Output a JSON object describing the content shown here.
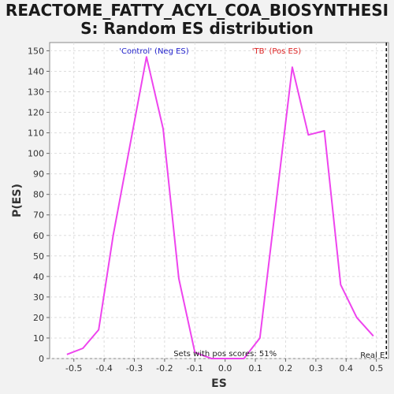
{
  "chart_data": {
    "type": "line",
    "title_lines": [
      "REACTOME_FATTY_ACYL_COA_BIOSYNTHESI",
      "S: Random ES distribution"
    ],
    "xlabel": "ES",
    "ylabel": "P(ES)",
    "xlim": [
      -0.58,
      0.54
    ],
    "ylim": [
      0,
      154
    ],
    "x_ticks": [
      -0.5,
      -0.4,
      -0.3,
      -0.2,
      -0.1,
      0.0,
      0.1,
      0.2,
      0.3,
      0.4,
      0.5
    ],
    "x_tick_labels": [
      "-0.5",
      "-0.4",
      "-0.3",
      "-0.2",
      "-0.1",
      "0.0",
      "0.1",
      "0.2",
      "0.3",
      "0.4",
      "0.5"
    ],
    "y_ticks": [
      0,
      10,
      20,
      30,
      40,
      50,
      60,
      70,
      80,
      90,
      100,
      110,
      120,
      130,
      140,
      150
    ],
    "y_tick_labels": [
      "0",
      "10",
      "20",
      "30",
      "40",
      "50",
      "60",
      "70",
      "80",
      "90",
      "100",
      "110",
      "120",
      "130",
      "140",
      "150"
    ],
    "grid": true,
    "series": [
      {
        "color": "#ee44ee",
        "points": [
          [
            -0.523,
            2
          ],
          [
            -0.47,
            5
          ],
          [
            -0.418,
            14
          ],
          [
            -0.37,
            60
          ],
          [
            -0.26,
            147
          ],
          [
            -0.205,
            112
          ],
          [
            -0.153,
            39
          ],
          [
            -0.1,
            3
          ],
          [
            -0.045,
            0
          ],
          [
            0.008,
            0
          ],
          [
            0.062,
            0
          ],
          [
            0.115,
            10
          ],
          [
            0.222,
            142
          ],
          [
            0.275,
            109
          ],
          [
            0.328,
            111
          ],
          [
            0.382,
            36
          ],
          [
            0.435,
            20
          ],
          [
            0.49,
            11
          ]
        ]
      }
    ],
    "annotations": {
      "neg_label": "'Control' (Neg ES)",
      "pos_label": "'TB' (Pos ES)",
      "sets_text": "Sets with pos scores: 51%",
      "real_es_text": "Real E"
    },
    "real_es_x": 0.533,
    "colors": {
      "neg": "#2222cc",
      "pos": "#dd2222",
      "line": "#ee44ee"
    }
  }
}
